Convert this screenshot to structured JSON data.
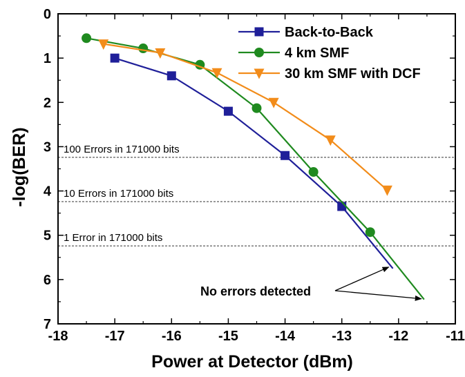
{
  "chart_data": {
    "type": "line",
    "xlabel": "Power at Detector (dBm)",
    "ylabel": "-log(BER)",
    "xlim": [
      -18,
      -11
    ],
    "ylim": [
      0,
      7
    ],
    "y_inverted": true,
    "grid": false,
    "legend_position": "top-right",
    "x_ticks": [
      "-18",
      "-17",
      "-16",
      "-15",
      "-14",
      "-13",
      "-12",
      "-11"
    ],
    "y_ticks": [
      "0",
      "1",
      "2",
      "3",
      "4",
      "5",
      "6",
      "7"
    ],
    "series": [
      {
        "name": "Back-to-Back",
        "color": "#1f1f99",
        "marker": "square",
        "points": [
          [
            -17,
            1.0
          ],
          [
            -16,
            1.4
          ],
          [
            -15,
            2.2
          ],
          [
            -14,
            3.2
          ],
          [
            -13,
            4.35
          ]
        ],
        "line_end": [
          -12.1,
          5.75
        ]
      },
      {
        "name": "4 km SMF",
        "color": "#1f8a1f",
        "marker": "circle",
        "points": [
          [
            -17.5,
            0.55
          ],
          [
            -16.5,
            0.78
          ],
          [
            -15.5,
            1.15
          ],
          [
            -14.5,
            2.13
          ],
          [
            -13.5,
            3.57
          ],
          [
            -12.5,
            4.93
          ]
        ],
        "line_end": [
          -11.55,
          6.45
        ]
      },
      {
        "name": "30 km SMF with DCF",
        "color": "#f28c1a",
        "marker": "triangle-down",
        "points": [
          [
            -17.2,
            0.68
          ],
          [
            -16.2,
            0.88
          ],
          [
            -15.2,
            1.33
          ],
          [
            -14.2,
            2.0
          ],
          [
            -13.2,
            2.85
          ],
          [
            -12.2,
            3.98
          ]
        ]
      }
    ],
    "reference_lines": [
      {
        "y": 3.24,
        "label": "100 Errors in 171000 bits"
      },
      {
        "y": 4.24,
        "label": "10 Errors in 171000 bits"
      },
      {
        "y": 5.24,
        "label": "1 Error in 171000 bits"
      }
    ],
    "annotation": {
      "text": "No errors detected"
    }
  }
}
